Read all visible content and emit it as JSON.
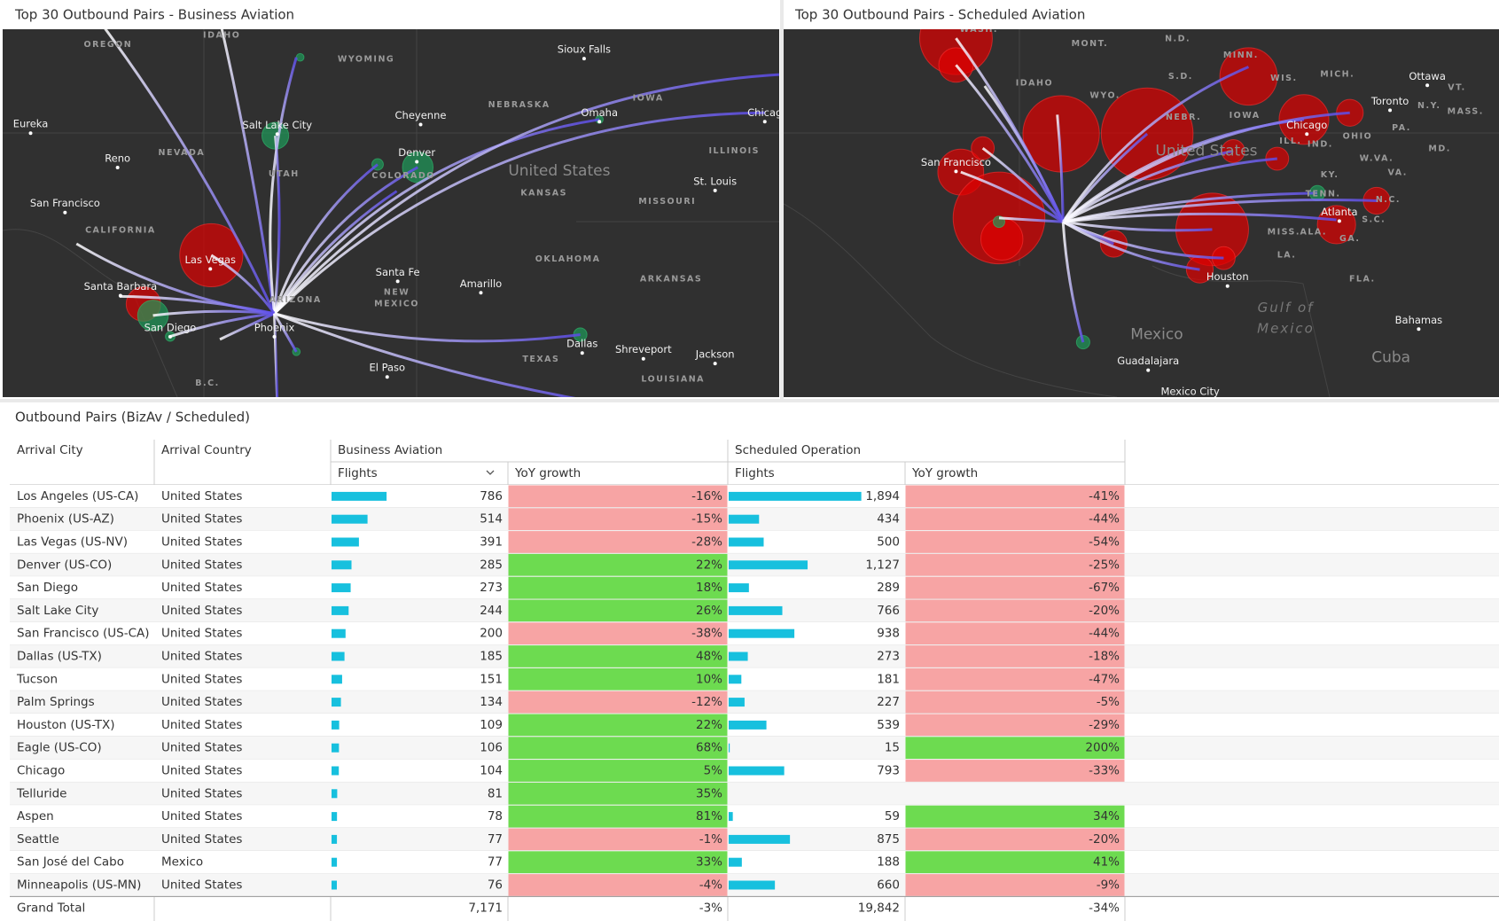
{
  "left_panel": {
    "title": "Top 30 Outbound Pairs - Business Aviation",
    "labels": [
      "OREGON",
      "IDAHO",
      "WYOMING",
      "Sioux Falls",
      "Eureka",
      "Salt Lake City",
      "Cheyenne",
      "NEBRASKA",
      "IOWA",
      "Omaha",
      "Chicag",
      "Reno",
      "NEVADA",
      "Denver",
      "ILLINOIS",
      "UTAH",
      "COLORADO",
      "United States",
      "St. Louis",
      "San Francisco",
      "KANSAS",
      "MISSOURI",
      "CALIFORNIA",
      "Las Vegas",
      "OKLAHOMA",
      "Santa Fe",
      "Amarillo",
      "ARKANSAS",
      "Santa Barbara",
      "NEW",
      "MEXICO",
      "ARIZONA",
      "San Diego",
      "Phoenix",
      "Dallas",
      "Shreveport",
      "Jackson",
      "TEXAS",
      "El Paso",
      "LOUISIANA",
      "B.C."
    ]
  },
  "right_panel": {
    "title": "Top 30 Outbound Pairs - Scheduled Aviation",
    "labels": [
      "WASH.",
      "MONT.",
      "N.D.",
      "MINN.",
      "S.D.",
      "IDAHO",
      "WIS.",
      "MICH.",
      "Ottawa",
      "WYO.",
      "Toronto",
      "N.Y.",
      "NEBR.",
      "IOWA",
      "Chicago",
      "PA.",
      "OHIO",
      "San Francisco",
      "United States",
      "ILL.",
      "IND.",
      "W.VA.",
      "KY.",
      "VA.",
      "TENN.",
      "N.C.",
      "Atlanta",
      "S.C.",
      "MISS.",
      "ALA.",
      "GA.",
      "LA.",
      "Houston",
      "FLA.",
      "Gulf of",
      "Mexico",
      "Bahamas",
      "Mexico",
      "Guadalajara",
      "Cuba",
      "Mexico City",
      "MASS.",
      "VT.",
      "MD."
    ]
  },
  "table": {
    "title": "Outbound Pairs (BizAv / Scheduled)",
    "headers": {
      "arrival_city": "Arrival City",
      "arrival_country": "Arrival Country",
      "business_aviation": "Business Aviation",
      "scheduled_operation": "Scheduled Operation",
      "flights": "Flights",
      "yoy_growth": "YoY growth"
    },
    "rows": [
      [
        "Los Angeles (US-CA)",
        "United States",
        "786",
        "-16%",
        "1,894",
        "-41%"
      ],
      [
        "Phoenix (US-AZ)",
        "United States",
        "514",
        "-15%",
        "434",
        "-44%"
      ],
      [
        "Las Vegas (US-NV)",
        "United States",
        "391",
        "-28%",
        "500",
        "-54%"
      ],
      [
        "Denver (US-CO)",
        "United States",
        "285",
        "22%",
        "1,127",
        "-25%"
      ],
      [
        "San Diego",
        "United States",
        "273",
        "18%",
        "289",
        "-67%"
      ],
      [
        "Salt Lake City",
        "United States",
        "244",
        "26%",
        "766",
        "-20%"
      ],
      [
        "San Francisco (US-CA)",
        "United States",
        "200",
        "-38%",
        "938",
        "-44%"
      ],
      [
        "Dallas (US-TX)",
        "United States",
        "185",
        "48%",
        "273",
        "-18%"
      ],
      [
        "Tucson",
        "United States",
        "151",
        "10%",
        "181",
        "-47%"
      ],
      [
        "Palm Springs",
        "United States",
        "134",
        "-12%",
        "227",
        "-5%"
      ],
      [
        "Houston (US-TX)",
        "United States",
        "109",
        "22%",
        "539",
        "-29%"
      ],
      [
        "Eagle (US-CO)",
        "United States",
        "106",
        "68%",
        "15",
        "200%"
      ],
      [
        "Chicago",
        "United States",
        "104",
        "5%",
        "793",
        "-33%"
      ],
      [
        "Telluride",
        "United States",
        "81",
        "35%",
        null,
        null
      ],
      [
        "Aspen",
        "United States",
        "78",
        "81%",
        "59",
        "34%"
      ],
      [
        "Seattle",
        "United States",
        "77",
        "-1%",
        "875",
        "-20%"
      ],
      [
        "San José del Cabo",
        "Mexico",
        "77",
        "33%",
        "188",
        "41%"
      ],
      [
        "Minneapolis (US-MN)",
        "United States",
        "76",
        "-4%",
        "660",
        "-9%"
      ]
    ],
    "total": [
      "Grand Total",
      "7,171",
      "-3%",
      "19,842",
      "-34%"
    ]
  }
}
